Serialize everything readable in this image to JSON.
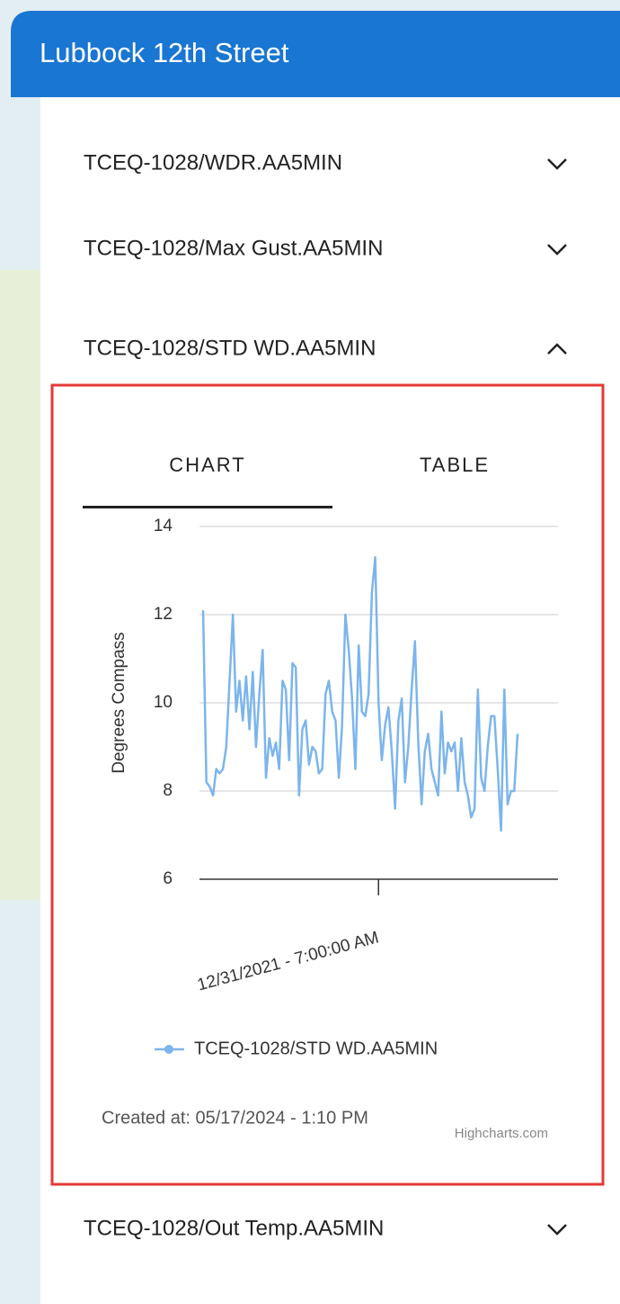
{
  "header": {
    "title": "Lubbock 12th Street"
  },
  "panels": [
    {
      "label": "TCEQ-1028/WDR.AA5MIN"
    },
    {
      "label": "TCEQ-1028/Max Gust.AA5MIN"
    },
    {
      "label": "TCEQ-1028/STD WD.AA5MIN"
    },
    {
      "label": "TCEQ-1028/Out Temp.AA5MIN"
    }
  ],
  "tabs": [
    "CHART",
    "TABLE"
  ],
  "chart_data": {
    "type": "line",
    "y_label": "Degrees Compass",
    "categories": [
      null,
      null,
      null,
      null,
      null,
      null,
      null,
      null,
      null,
      null,
      null,
      null,
      null,
      null,
      null,
      null,
      null,
      null,
      null,
      null,
      null,
      null,
      null,
      null,
      null,
      null,
      null,
      null,
      null,
      null,
      null,
      null,
      null,
      null,
      null,
      null,
      null,
      null,
      null,
      null,
      null,
      null,
      null,
      null,
      null,
      null,
      null,
      null,
      null,
      null,
      null,
      null,
      null,
      "12/31/2021 - 7:00:00 AM",
      null,
      null,
      null,
      null,
      null,
      null,
      null,
      null,
      null,
      null,
      null,
      null,
      null,
      null,
      null,
      null,
      null,
      null,
      null,
      null,
      null,
      null,
      null,
      null,
      null,
      null,
      null,
      null,
      null,
      null,
      null,
      null,
      null,
      null,
      null,
      null,
      null,
      null,
      null,
      null,
      null,
      null
    ],
    "series": [
      {
        "name": "TCEQ-1028/STD WD.AA5MIN",
        "color": "#7cb5ec",
        "values": [
          12.1,
          8.2,
          8.1,
          7.9,
          8.5,
          8.4,
          8.5,
          9.0,
          10.5,
          12.0,
          9.8,
          10.5,
          9.6,
          10.6,
          9.4,
          10.7,
          9.0,
          10.2,
          11.2,
          8.3,
          9.2,
          8.8,
          9.1,
          8.5,
          10.5,
          10.3,
          8.7,
          10.9,
          10.8,
          7.9,
          9.4,
          9.6,
          8.6,
          9.0,
          8.9,
          8.4,
          8.5,
          10.2,
          10.5,
          9.8,
          9.6,
          8.3,
          9.5,
          12.0,
          11.2,
          10.1,
          8.5,
          11.3,
          9.8,
          9.7,
          10.2,
          12.5,
          13.3,
          10.0,
          8.7,
          9.5,
          9.9,
          8.9,
          7.6,
          9.6,
          10.1,
          8.2,
          9.0,
          10.3,
          11.4,
          9.1,
          7.7,
          8.9,
          9.3,
          8.5,
          8.2,
          7.9,
          9.8,
          8.4,
          9.1,
          8.9,
          9.1,
          8.0,
          9.2,
          8.2,
          7.9,
          7.4,
          7.6,
          10.3,
          8.3,
          8.0,
          9.0,
          9.7,
          9.7,
          8.5,
          7.1,
          10.3,
          7.7,
          8.0,
          8.0,
          9.3
        ]
      }
    ],
    "ylim": [
      6,
      14
    ],
    "yticks": [
      6,
      8,
      10,
      12,
      14
    ],
    "grid": true,
    "caption": "Created at: 05/17/2024 - 1:10 PM",
    "credits": "Highcharts.com"
  }
}
